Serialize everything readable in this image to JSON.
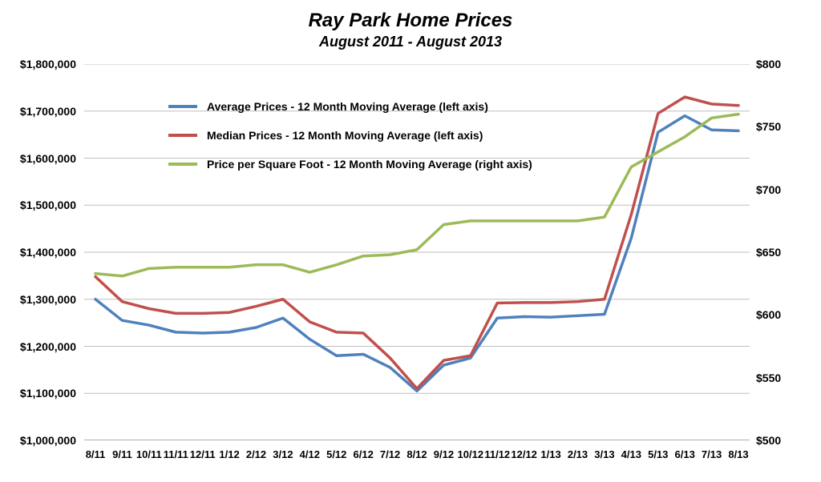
{
  "chart": {
    "type": "line",
    "title": "Ray Park Home Prices",
    "subtitle": "August 2011 - August 2013",
    "title_fontsize": 24,
    "subtitle_fontsize": 18,
    "background_color": "#ffffff",
    "grid_color": "#bfbfbf",
    "axis_color": "#808080",
    "line_width": 3.5,
    "categories": [
      "8/11",
      "9/11",
      "10/11",
      "11/11",
      "12/11",
      "1/12",
      "2/12",
      "3/12",
      "4/12",
      "5/12",
      "6/12",
      "7/12",
      "8/12",
      "9/12",
      "10/12",
      "11/12",
      "12/12",
      "1/13",
      "2/13",
      "3/13",
      "4/13",
      "5/13",
      "6/13",
      "7/13",
      "8/13"
    ],
    "left_axis": {
      "min": 1000000,
      "max": 1800000,
      "step": 100000,
      "prefix": "$",
      "ticks": [
        "$1,000,000",
        "$1,100,000",
        "$1,200,000",
        "$1,300,000",
        "$1,400,000",
        "$1,500,000",
        "$1,600,000",
        "$1,700,000",
        "$1,800,000"
      ]
    },
    "right_axis": {
      "min": 500,
      "max": 800,
      "step": 50,
      "prefix": "$",
      "ticks": [
        "$500",
        "$550",
        "$600",
        "$650",
        "$700",
        "$750",
        "$800"
      ]
    },
    "series": [
      {
        "name": "Average Prices - 12 Month Moving Average (left axis)",
        "color": "#4f81bd",
        "axis": "left",
        "values": [
          1300000,
          1255000,
          1245000,
          1230000,
          1228000,
          1230000,
          1240000,
          1260000,
          1215000,
          1180000,
          1183000,
          1155000,
          1105000,
          1160000,
          1175000,
          1260000,
          1263000,
          1262000,
          1265000,
          1268000,
          1430000,
          1655000,
          1690000,
          1660000,
          1658000
        ]
      },
      {
        "name": "Median Prices - 12 Month Moving Average (left axis)",
        "color": "#c0504d",
        "axis": "left",
        "values": [
          1348000,
          1295000,
          1280000,
          1270000,
          1270000,
          1272000,
          1285000,
          1300000,
          1252000,
          1230000,
          1228000,
          1175000,
          1110000,
          1170000,
          1180000,
          1292000,
          1293000,
          1293000,
          1295000,
          1300000,
          1480000,
          1695000,
          1730000,
          1715000,
          1712000
        ]
      },
      {
        "name": "Price per Square Foot - 12 Month Moving Average (right axis)",
        "color": "#9bbb59",
        "axis": "right",
        "values": [
          633,
          631,
          637,
          638,
          638,
          638,
          640,
          640,
          634,
          640,
          647,
          648,
          652,
          672,
          675,
          675,
          675,
          675,
          675,
          678,
          718,
          730,
          742,
          757,
          760
        ]
      }
    ]
  }
}
